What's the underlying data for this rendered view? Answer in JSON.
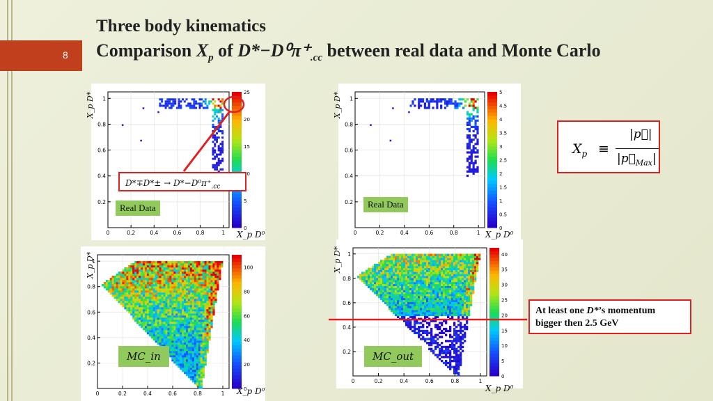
{
  "slide": {
    "number": "8",
    "title_line1": "Three body kinematics",
    "title_line2_prefix": "Comparison ",
    "title_xp": "X",
    "title_xp_sub": "p",
    "title_of": " of ",
    "title_decay": "D*−D⁰π⁺",
    "title_cc_sub": ".cc",
    "title_line2_suffix": " between real data and Monte Carlo"
  },
  "annotations": {
    "decay_text": "D*∓D*± → D*−D⁰π⁺",
    "decay_cc": ".cc",
    "formula_lhs": "X",
    "formula_lhs_sub": "p",
    "formula_eq": "≡",
    "formula_num": "|p⃗|",
    "formula_den": "|p⃗",
    "formula_den_sub": "Max",
    "formula_den_close": "|",
    "note_line1_a": "At least one ",
    "note_line1_d": "D*",
    "note_line1_b": "’s momentum",
    "note_line2": "bigger then 2.5 GeV",
    "colors": {
      "accent": "#e02020",
      "slide_number_bg": "#c0401e",
      "tag_bg": "#92c95c"
    }
  },
  "chart_data": [
    {
      "type": "heatmap",
      "label": "Real Data",
      "xlabel": "X_p D⁰",
      "ylabel": "X_p D*",
      "xlim": [
        0,
        1.05
      ],
      "ylim": [
        0,
        1.05
      ],
      "xticks": [
        "0",
        "0.2",
        "0.4",
        "0.6",
        "0.8",
        "1"
      ],
      "yticks": [
        "0.2",
        "0.4",
        "0.6",
        "0.8",
        "1"
      ],
      "colorbar_range": [
        0,
        25
      ],
      "colorbar_ticks": [
        "0",
        "5",
        "10",
        "15",
        "20",
        "25"
      ],
      "distribution": "edge",
      "density": 25,
      "highlight": {
        "x": 0.94,
        "y": 0.98
      }
    },
    {
      "type": "heatmap",
      "label": "Real Data",
      "xlabel": "X_p D⁰",
      "ylabel": "X_p D*",
      "xlim": [
        0,
        1.05
      ],
      "ylim": [
        0,
        1.05
      ],
      "xticks": [
        "0",
        "0.2",
        "0.4",
        "0.6",
        "0.8",
        "1"
      ],
      "yticks": [
        "0.2",
        "0.4",
        "0.6",
        "0.8",
        "1"
      ],
      "colorbar_range": [
        0,
        5
      ],
      "colorbar_ticks": [
        "0",
        "0.5",
        "1",
        "1.5",
        "2",
        "2.5",
        "3",
        "3.5",
        "4",
        "4.5",
        "5"
      ],
      "distribution": "edge",
      "density": 5
    },
    {
      "type": "heatmap",
      "label": "MC_in",
      "xlabel": "X_p D⁰",
      "ylabel": "X_p D*",
      "xlim": [
        0,
        1.05
      ],
      "ylim": [
        0,
        1.05
      ],
      "xticks": [
        "0",
        "0.2",
        "0.4",
        "0.6",
        "0.8",
        "1"
      ],
      "yticks": [
        "0.2",
        "0.4",
        "0.6",
        "0.8",
        "1"
      ],
      "colorbar_range": [
        0,
        110
      ],
      "colorbar_ticks": [
        "0",
        "20",
        "40",
        "60",
        "80",
        "100"
      ],
      "distribution": "triangle_full",
      "density": 100
    },
    {
      "type": "heatmap",
      "label": "MC_out",
      "xlabel": "X_p D⁰",
      "ylabel": "X_p D*",
      "xlim": [
        0,
        1.05
      ],
      "ylim": [
        0,
        1.05
      ],
      "xticks": [
        "0",
        "0.2",
        "0.4",
        "0.6",
        "0.8",
        "1"
      ],
      "yticks": [
        "0.2",
        "0.4",
        "0.6",
        "0.8",
        "1"
      ],
      "colorbar_range": [
        0,
        42
      ],
      "colorbar_ticks": [
        "0",
        "5",
        "10",
        "15",
        "20",
        "25",
        "30",
        "35",
        "40"
      ],
      "distribution": "triangle_cut",
      "density": 40,
      "cut_line_y": 0.5
    }
  ]
}
